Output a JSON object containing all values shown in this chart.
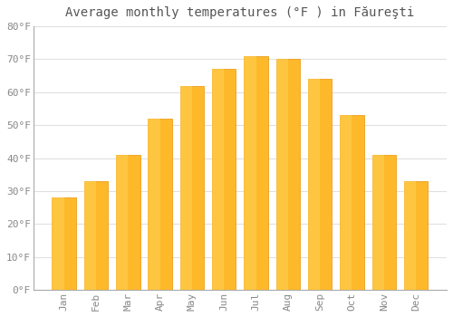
{
  "title": "Average monthly temperatures (°F ) in Făureşti",
  "months": [
    "Jan",
    "Feb",
    "Mar",
    "Apr",
    "May",
    "Jun",
    "Jul",
    "Aug",
    "Sep",
    "Oct",
    "Nov",
    "Dec"
  ],
  "values": [
    28,
    33,
    41,
    52,
    62,
    67,
    71,
    70,
    64,
    53,
    41,
    33
  ],
  "bar_color": "#FFA500",
  "bar_edge_color": "#E8920A",
  "background_color": "#FFFFFF",
  "grid_color": "#E0E0E0",
  "ylim": [
    0,
    80
  ],
  "yticks": [
    0,
    10,
    20,
    30,
    40,
    50,
    60,
    70,
    80
  ],
  "title_fontsize": 10,
  "tick_fontsize": 8,
  "tick_label_color": "#888888",
  "title_color": "#555555"
}
